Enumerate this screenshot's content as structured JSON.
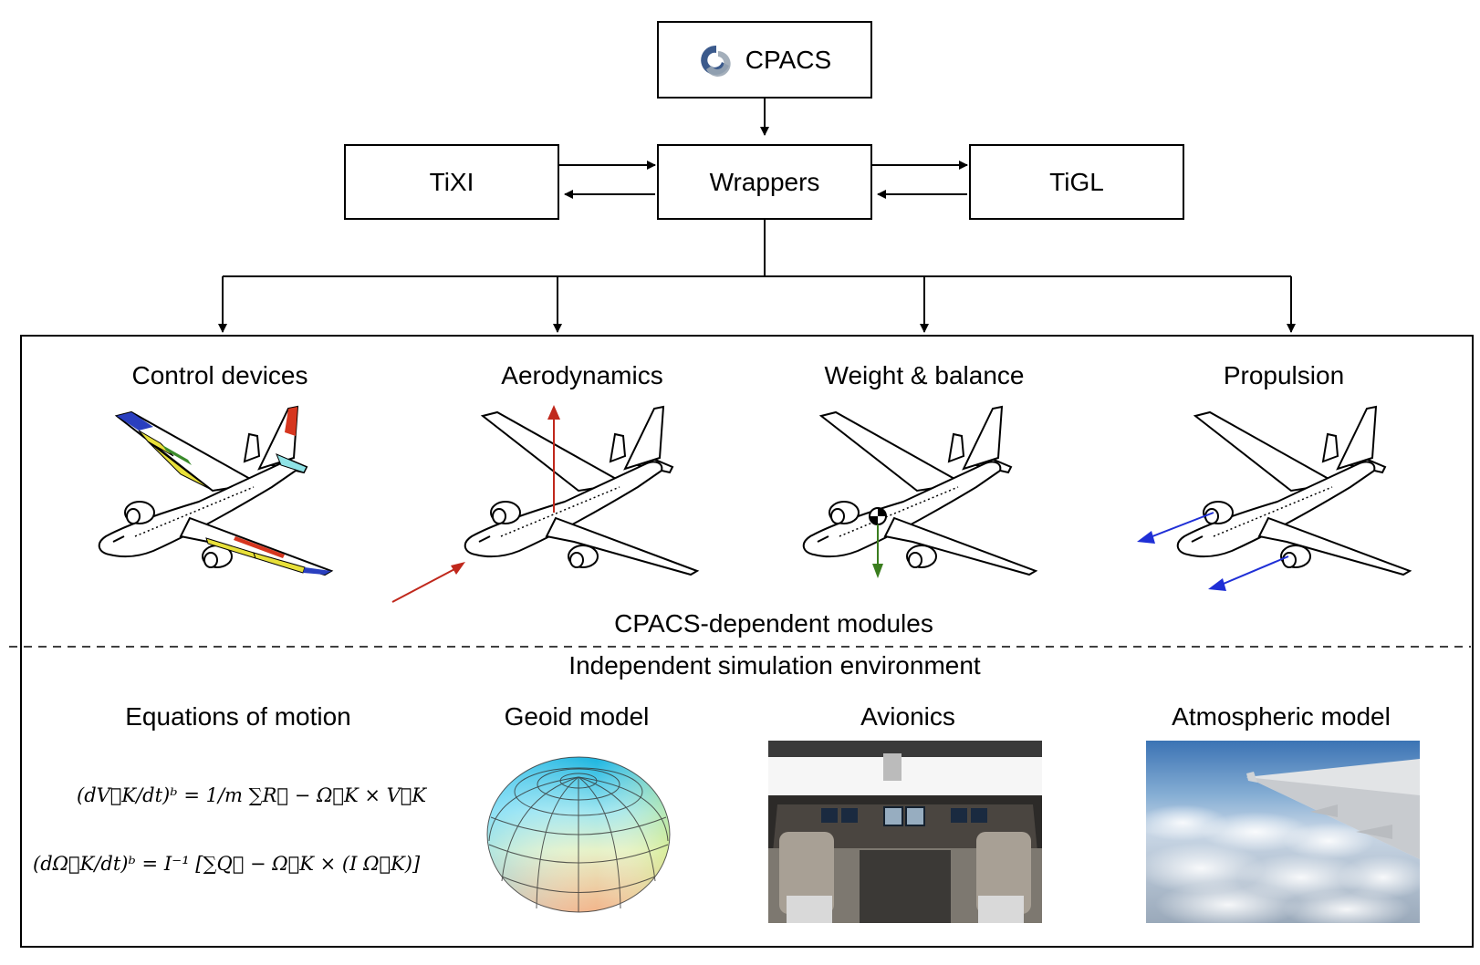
{
  "top": {
    "cpacs": "CPACS",
    "tixi": "TiXI",
    "wrappers": "Wrappers",
    "tigl": "TiGL"
  },
  "modules": {
    "control": "Control devices",
    "aero": "Aerodynamics",
    "weight": "Weight & balance",
    "propulsion": "Propulsion",
    "dependent_label": "CPACS-dependent modules"
  },
  "environment": {
    "label": "Independent simulation environment",
    "eom": "Equations of motion",
    "geoid": "Geoid model",
    "avionics": "Avionics",
    "atmos": "Atmospheric model",
    "eq1": "(dV⃗K/dt)ᵇ = 1/m ∑R⃗ − Ω⃗K × V⃗K",
    "eq2": "(dΩ⃗K/dt)ᵇ = I⁻¹ [∑Q⃗ − Ω⃗K × (I Ω⃗K)]"
  },
  "colors": {
    "aero_arrow": "#c0281c",
    "weight_arrow": "#3a7d1e",
    "prop_arrow": "#1f2fd6",
    "aileron": "#2a3fbf",
    "flap": "#e8e03a",
    "spoiler": "#d6361f",
    "rudder": "#d6361f",
    "elevator": "#8fe3e6",
    "tab": "#3a8a2a"
  }
}
